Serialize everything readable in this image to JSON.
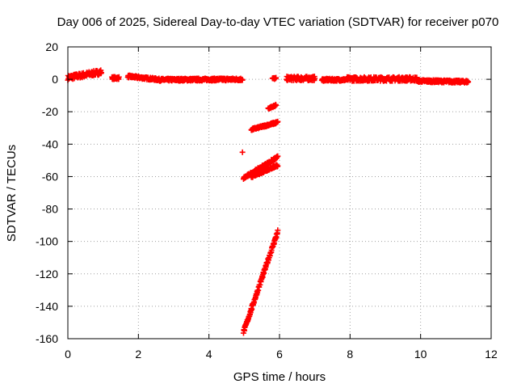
{
  "chart_data": {
    "type": "scatter",
    "title": "Day 006 of 2025, Sidereal Day-to-day VTEC variation (SDTVAR) for receiver p070",
    "xlabel": "GPS time / hours",
    "ylabel": "SDTVAR / TECUs",
    "xlim": [
      0,
      12
    ],
    "ylim": [
      -160,
      20
    ],
    "xticks": [
      0,
      2,
      4,
      6,
      8,
      10,
      12
    ],
    "yticks": [
      -160,
      -140,
      -120,
      -100,
      -80,
      -60,
      -40,
      -20,
      0,
      20
    ],
    "grid": true,
    "marker": "+",
    "series": [
      {
        "color": "#ff0000",
        "segments": [
          {
            "x0": 0.0,
            "x1": 0.95,
            "y0": 1.0,
            "y1": 4.5,
            "spread": 3.0
          },
          {
            "x0": 1.25,
            "x1": 1.45,
            "y0": 0.8,
            "y1": 0.8,
            "spread": 1.5
          },
          {
            "x0": 1.7,
            "x1": 2.6,
            "y0": 1.8,
            "y1": -0.2,
            "spread": 1.5
          },
          {
            "x0": 2.6,
            "x1": 4.95,
            "y0": -0.3,
            "y1": 0.0,
            "spread": 1.5
          },
          {
            "x0": 5.8,
            "x1": 5.9,
            "y0": 0.5,
            "y1": 0.5,
            "spread": 1.0
          },
          {
            "x0": 6.2,
            "x1": 7.0,
            "y0": 0.5,
            "y1": 0.5,
            "spread": 2.5
          },
          {
            "x0": 7.2,
            "x1": 7.9,
            "y0": -0.3,
            "y1": -0.3,
            "spread": 1.5
          },
          {
            "x0": 7.9,
            "x1": 9.9,
            "y0": 0.2,
            "y1": 0.2,
            "spread": 2.5
          },
          {
            "x0": 9.9,
            "x1": 11.35,
            "y0": -1.0,
            "y1": -1.5,
            "spread": 1.5
          },
          {
            "x0": 5.68,
            "x1": 5.9,
            "y0": -18.0,
            "y1": -16.0,
            "spread": 1.0
          },
          {
            "x0": 5.2,
            "x1": 5.95,
            "y0": -31.0,
            "y1": -26.5,
            "spread": 1.2
          },
          {
            "x0": 4.98,
            "x1": 5.95,
            "y0": -61.0,
            "y1": -48.0,
            "spread": 1.5
          },
          {
            "x0": 5.2,
            "x1": 5.95,
            "y0": -60.0,
            "y1": -53.0,
            "spread": 1.5
          },
          {
            "x0": 4.98,
            "x1": 5.95,
            "y0": -156.0,
            "y1": -94.0,
            "spread": 2.0
          }
        ],
        "points": [
          [
            4.95,
            -45.0
          ]
        ]
      }
    ]
  }
}
